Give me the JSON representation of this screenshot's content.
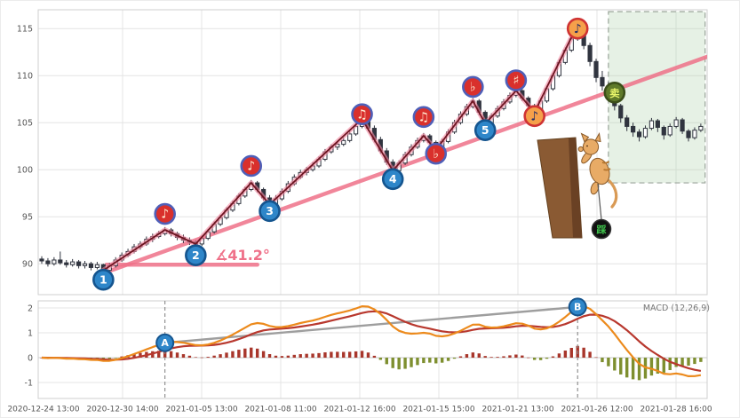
{
  "colors": {
    "grid": "#e4e4e4",
    "panel_border": "#cfcfcf",
    "axis_text": "#555555",
    "candle_line": "#30343f",
    "candle_up": "#ffffff",
    "trend_pink": "#ef7189",
    "zigzag_glow": "#f287a0",
    "zigzag_core": "#6e1420",
    "box_fill": "rgba(173,210,168,0.30)",
    "box_stroke": "#9aa49a",
    "marker_blue": "#2e86c9",
    "marker_blue_ring": "#15558f",
    "marker_red": "#d9302c",
    "marker_red_ring": "#4f5fb8",
    "marker_orange": "#f5a04a",
    "marker_orange_ring": "#cf3333",
    "marker_green": "#5f7a2a",
    "marker_green_ring": "#3c4f1a",
    "hist_pos": "#a8362b",
    "hist_neg": "#7e8f2f",
    "dif_line": "#ec8a1c",
    "dea_line": "#b8382e",
    "ab_line": "#9e9e9e"
  },
  "chart_data": [
    {
      "type": "candlestick",
      "x_tick_labels": [
        "2020-12-24 13:00",
        "2020-12-30 14:00",
        "2021-01-05 13:00",
        "2021-01-08 11:00",
        "2021-01-12 16:00",
        "2021-01-15 15:00",
        "2021-01-21 13:00",
        "2021-01-26 12:00",
        "2021-01-28 16:00"
      ],
      "y_ticks": [
        90,
        95,
        100,
        105,
        110,
        115
      ],
      "ylim": [
        86.7,
        117.0
      ],
      "candles": [
        [
          90.5,
          90.8,
          90.0,
          90.3
        ],
        [
          90.3,
          90.6,
          89.7,
          90.0
        ],
        [
          90.0,
          90.7,
          89.8,
          90.4
        ],
        [
          90.4,
          91.3,
          89.9,
          90.1
        ],
        [
          90.1,
          90.4,
          89.6,
          89.9
        ],
        [
          89.9,
          90.5,
          89.7,
          90.2
        ],
        [
          90.2,
          90.4,
          89.5,
          89.8
        ],
        [
          89.8,
          90.3,
          89.5,
          90.0
        ],
        [
          90.0,
          90.2,
          89.3,
          89.6
        ],
        [
          89.6,
          90.2,
          89.4,
          89.9
        ],
        [
          89.9,
          90.0,
          88.8,
          89.3
        ],
        [
          89.3,
          90.1,
          89.1,
          89.8
        ],
        [
          89.8,
          90.7,
          89.6,
          90.4
        ],
        [
          90.4,
          91.2,
          90.2,
          90.9
        ],
        [
          90.9,
          91.6,
          90.7,
          91.3
        ],
        [
          91.3,
          92.1,
          91.1,
          91.8
        ],
        [
          91.8,
          92.4,
          91.5,
          92.1
        ],
        [
          92.1,
          92.9,
          91.9,
          92.6
        ],
        [
          92.6,
          93.2,
          92.3,
          92.9
        ],
        [
          92.9,
          93.5,
          92.7,
          93.2
        ],
        [
          93.2,
          93.9,
          93.0,
          93.6
        ],
        [
          93.6,
          93.8,
          92.9,
          93.2
        ],
        [
          93.2,
          93.4,
          92.5,
          92.8
        ],
        [
          92.8,
          93.1,
          92.2,
          92.5
        ],
        [
          92.5,
          92.8,
          92.0,
          92.3
        ],
        [
          92.3,
          92.5,
          91.6,
          92.1
        ],
        [
          92.1,
          93.0,
          91.9,
          92.7
        ],
        [
          92.7,
          93.7,
          92.5,
          93.4
        ],
        [
          93.4,
          94.5,
          93.2,
          94.2
        ],
        [
          94.2,
          95.2,
          94.0,
          94.9
        ],
        [
          94.9,
          96.0,
          94.7,
          95.7
        ],
        [
          95.7,
          96.7,
          95.5,
          96.4
        ],
        [
          96.4,
          97.5,
          96.2,
          97.2
        ],
        [
          97.2,
          98.2,
          97.0,
          97.9
        ],
        [
          97.9,
          98.9,
          97.7,
          98.6
        ],
        [
          98.6,
          98.8,
          97.6,
          97.9
        ],
        [
          97.9,
          98.1,
          96.7,
          97.0
        ],
        [
          97.0,
          97.3,
          96.0,
          96.3
        ],
        [
          96.3,
          97.3,
          96.1,
          96.9
        ],
        [
          96.9,
          98.0,
          96.7,
          97.7
        ],
        [
          97.7,
          98.8,
          97.5,
          98.5
        ],
        [
          98.5,
          99.5,
          98.3,
          99.2
        ],
        [
          99.2,
          100.0,
          99.0,
          99.7
        ],
        [
          99.7,
          100.3,
          99.4,
          100.0
        ],
        [
          100.0,
          100.8,
          99.8,
          100.4
        ],
        [
          100.4,
          101.4,
          100.2,
          101.1
        ],
        [
          101.1,
          102.2,
          100.9,
          101.9
        ],
        [
          101.9,
          102.7,
          101.7,
          102.4
        ],
        [
          102.4,
          103.0,
          102.1,
          102.7
        ],
        [
          102.7,
          103.4,
          102.5,
          103.1
        ],
        [
          103.1,
          104.1,
          102.9,
          103.8
        ],
        [
          103.8,
          104.9,
          103.6,
          104.6
        ],
        [
          104.6,
          105.8,
          104.4,
          105.4
        ],
        [
          105.4,
          105.6,
          104.1,
          104.4
        ],
        [
          104.4,
          104.7,
          102.9,
          103.2
        ],
        [
          103.2,
          103.5,
          101.7,
          102.0
        ],
        [
          102.0,
          102.3,
          100.5,
          100.8
        ],
        [
          100.8,
          101.1,
          99.5,
          99.9
        ],
        [
          99.9,
          101.0,
          99.7,
          100.7
        ],
        [
          100.7,
          101.9,
          100.5,
          101.6
        ],
        [
          101.6,
          102.7,
          101.4,
          102.4
        ],
        [
          102.4,
          103.4,
          102.2,
          103.1
        ],
        [
          103.1,
          103.9,
          102.9,
          103.6
        ],
        [
          103.6,
          103.8,
          102.6,
          102.9
        ],
        [
          102.9,
          103.1,
          101.8,
          102.1
        ],
        [
          102.1,
          103.3,
          101.9,
          103.0
        ],
        [
          103.0,
          104.3,
          102.8,
          104.0
        ],
        [
          104.0,
          105.3,
          103.8,
          105.0
        ],
        [
          105.0,
          106.2,
          104.8,
          105.9
        ],
        [
          105.9,
          107.0,
          105.7,
          106.7
        ],
        [
          106.7,
          107.6,
          106.5,
          107.3
        ],
        [
          107.3,
          107.5,
          105.8,
          106.1
        ],
        [
          106.1,
          106.3,
          104.5,
          104.9
        ],
        [
          104.9,
          106.0,
          104.7,
          105.7
        ],
        [
          105.7,
          106.8,
          105.5,
          106.5
        ],
        [
          106.5,
          107.5,
          106.3,
          107.2
        ],
        [
          107.2,
          108.2,
          107.0,
          107.9
        ],
        [
          107.9,
          108.7,
          107.7,
          108.4
        ],
        [
          108.4,
          108.6,
          107.3,
          107.6
        ],
        [
          107.6,
          107.8,
          106.5,
          106.8
        ],
        [
          106.8,
          107.0,
          105.7,
          106.1
        ],
        [
          106.1,
          107.6,
          105.9,
          107.3
        ],
        [
          107.3,
          108.9,
          107.1,
          108.6
        ],
        [
          108.6,
          110.3,
          108.4,
          110.0
        ],
        [
          110.0,
          111.7,
          109.8,
          111.4
        ],
        [
          111.4,
          113.0,
          111.2,
          112.7
        ],
        [
          112.7,
          114.2,
          112.5,
          113.9
        ],
        [
          113.9,
          115.6,
          113.7,
          114.8
        ],
        [
          114.8,
          115.2,
          112.8,
          113.2
        ],
        [
          113.2,
          113.5,
          111.0,
          111.5
        ],
        [
          111.5,
          111.8,
          109.3,
          109.8
        ],
        [
          109.8,
          110.5,
          108.4,
          108.9
        ],
        [
          108.9,
          109.3,
          107.6,
          108.2
        ],
        [
          108.2,
          108.4,
          106.3,
          106.8
        ],
        [
          106.8,
          107.0,
          105.0,
          105.5
        ],
        [
          105.5,
          105.8,
          104.1,
          104.6
        ],
        [
          104.6,
          105.0,
          103.5,
          104.0
        ],
        [
          104.0,
          104.3,
          103.0,
          103.5
        ],
        [
          103.5,
          104.7,
          103.3,
          104.4
        ],
        [
          104.4,
          105.5,
          104.2,
          105.2
        ],
        [
          105.2,
          105.4,
          104.0,
          104.5
        ],
        [
          104.5,
          104.7,
          103.2,
          103.7
        ],
        [
          103.7,
          104.9,
          103.5,
          104.6
        ],
        [
          104.6,
          105.6,
          104.4,
          105.3
        ],
        [
          105.3,
          105.5,
          103.8,
          104.1
        ],
        [
          104.1,
          104.3,
          103.0,
          103.4
        ],
        [
          103.4,
          104.5,
          103.2,
          104.2
        ],
        [
          104.2,
          104.9,
          104.0,
          104.6
        ]
      ],
      "zigzag": [
        [
          10,
          89.3
        ],
        [
          20,
          93.6
        ],
        [
          25,
          92.1
        ],
        [
          34,
          98.6
        ],
        [
          37,
          96.3
        ],
        [
          52,
          105.4
        ],
        [
          57,
          99.9
        ],
        [
          62,
          103.6
        ],
        [
          64,
          102.1
        ],
        [
          70,
          107.3
        ],
        [
          72,
          104.9
        ],
        [
          77,
          108.4
        ],
        [
          80,
          106.1
        ],
        [
          87,
          115.4
        ]
      ],
      "wave_markers": [
        {
          "idx": 10,
          "price": 88.3,
          "style": "blue",
          "text": "1"
        },
        {
          "idx": 20,
          "price": 95.3,
          "style": "red",
          "text": "♪"
        },
        {
          "idx": 25,
          "price": 90.9,
          "style": "blue",
          "text": "2"
        },
        {
          "idx": 34,
          "price": 100.4,
          "style": "red",
          "text": "♪"
        },
        {
          "idx": 37,
          "price": 95.6,
          "style": "blue",
          "text": "3"
        },
        {
          "idx": 52,
          "price": 105.9,
          "style": "red",
          "text": "♫"
        },
        {
          "idx": 57,
          "price": 99.0,
          "style": "blue",
          "text": "4"
        },
        {
          "idx": 62,
          "price": 105.6,
          "style": "red",
          "text": "♫"
        },
        {
          "idx": 64,
          "price": 101.7,
          "style": "red",
          "text": "♭"
        },
        {
          "idx": 70,
          "price": 108.8,
          "style": "red",
          "text": "♭"
        },
        {
          "idx": 72,
          "price": 104.2,
          "style": "blue",
          "text": "5"
        },
        {
          "idx": 77,
          "price": 109.5,
          "style": "red",
          "text": "♯"
        },
        {
          "idx": 80,
          "price": 105.7,
          "style": "orange",
          "text": "♪"
        },
        {
          "idx": 87,
          "price": 115.0,
          "style": "orange",
          "text": "♪"
        },
        {
          "idx": 93,
          "price": 108.2,
          "style": "green",
          "text": "卖"
        }
      ],
      "trendline": {
        "from": [
          10,
          89.0
        ],
        "to": [
          108,
          112.0
        ]
      },
      "angle_ray": {
        "price": 89.9,
        "from_idx": 10.5,
        "to_idx": 35
      },
      "angle_label": "∡41.2°",
      "projection_box": {
        "from_idx": 92,
        "to_idx": 107.7,
        "top": 116.8,
        "bottom": 98.6
      },
      "cliff_tag": "踩"
    },
    {
      "type": "macd",
      "legend": "MACD (12,26,9)",
      "params": [
        12,
        26,
        9
      ],
      "y_ticks": [
        -1,
        0,
        1,
        2
      ],
      "ylim": [
        -1.64,
        2.29
      ],
      "annotations": [
        {
          "idx": 20,
          "label": "A"
        },
        {
          "idx": 87,
          "label": "B",
          "value_hint": 2.04
        }
      ]
    }
  ]
}
